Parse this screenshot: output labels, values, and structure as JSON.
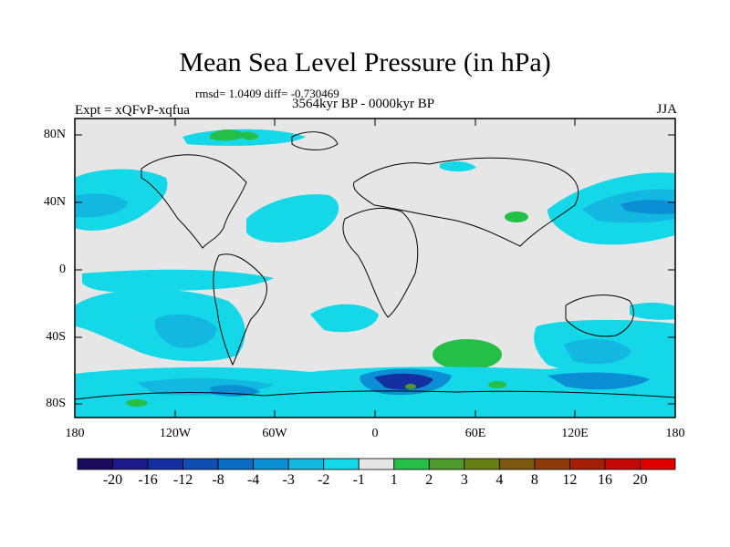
{
  "title": "Mean Sea Level Pressure (in hPa)",
  "stats": "rmsd= 1.0409 diff= -0.730469",
  "experiment": "Expt = xQFvP-xqfua",
  "period": "3564kyr BP - 0000kyr BP",
  "season": "JJA",
  "lat_ticks": [
    "80N",
    "40N",
    "0",
    "40S",
    "80S"
  ],
  "lon_ticks": [
    "180",
    "120W",
    "60W",
    "0",
    "60E",
    "120E",
    "180"
  ],
  "colorbar": {
    "labels": [
      "-20",
      "-16",
      "-12",
      "-8",
      "-4",
      "-3",
      "-2",
      "-1",
      "1",
      "2",
      "3",
      "4",
      "8",
      "12",
      "16",
      "20"
    ],
    "colors": [
      "#1a0a5c",
      "#1c1a8a",
      "#1430a0",
      "#0f4db3",
      "#0b6cc4",
      "#0a8fd4",
      "#13b8e0",
      "#14d8e8",
      "#e6e6e6",
      "#23bf46",
      "#4f9a2c",
      "#687f14",
      "#7a5a10",
      "#8f3a0a",
      "#a51e08",
      "#c40a06",
      "#e00000"
    ]
  },
  "palette": {
    "background": "#e6e6e6",
    "neg1": "#14d8e8",
    "neg2": "#13b8e0",
    "neg3": "#0a8fd4",
    "neg4": "#0b6cc4",
    "neg8": "#1430a0",
    "pos1": "#23bf46"
  }
}
